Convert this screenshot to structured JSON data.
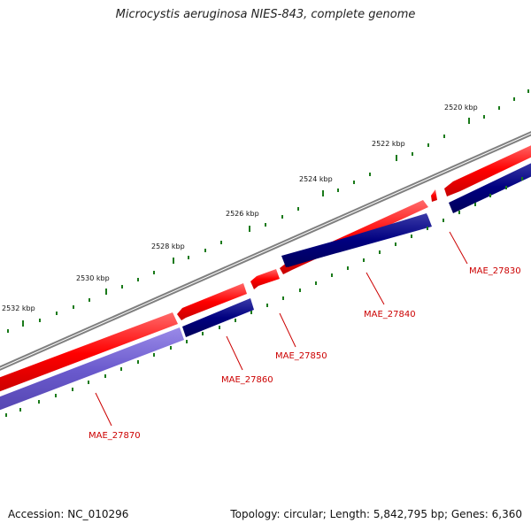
{
  "title": "Microcystis aeruginosa NIES-843, complete genome",
  "footer": {
    "accession": "Accession: NC_010296",
    "summary": "Topology: circular; Length: 5,842,795 bp; Genes: 6,360"
  },
  "colors": {
    "backbone": "#7f7f7f",
    "forward_gene": "#ff0000",
    "reverse_gene": "#000080",
    "selected_gene": "#6a5acd",
    "tick": "#1a7a1a",
    "label_line": "#cc0000"
  },
  "ticks": [
    "2520 kbp",
    "2522 kbp",
    "2524 kbp",
    "2526 kbp",
    "2528 kbp",
    "2530 kbp",
    "2532 kbp"
  ],
  "genes": [
    {
      "name": "MAE_27830",
      "strand": "reverse"
    },
    {
      "name": "MAE_27840",
      "strand": "reverse"
    },
    {
      "name": "MAE_27850",
      "strand": "reverse"
    },
    {
      "name": "MAE_27860",
      "strand": "reverse"
    },
    {
      "name": "MAE_27870",
      "strand": "reverse",
      "highlighted": true
    }
  ]
}
